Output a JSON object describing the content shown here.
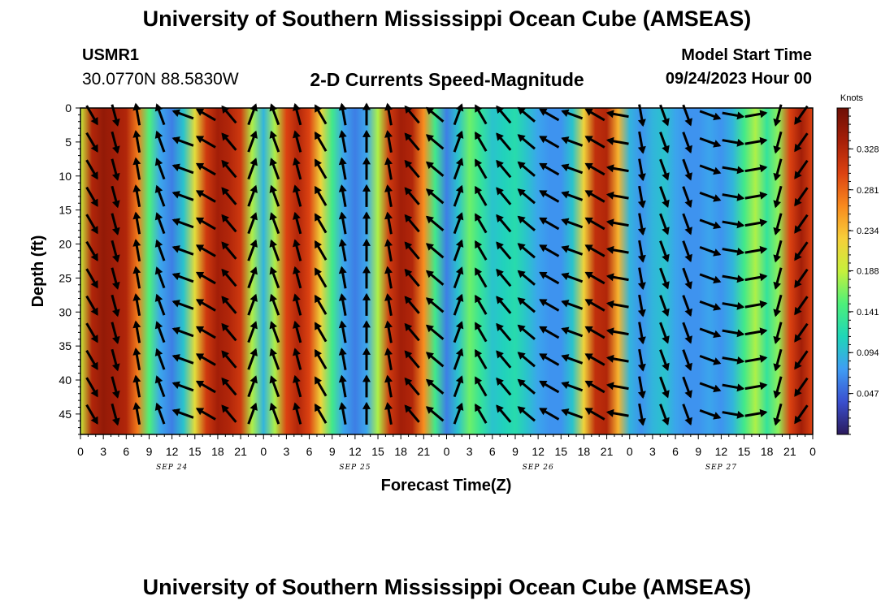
{
  "header": {
    "title": "University of Southern Mississippi Ocean Cube (AMSEAS)",
    "station": "USMR1",
    "coords": "30.0770N  88.5830W",
    "plot_title": "2-D Currents Speed-Magnitude",
    "model_start_label": "Model Start Time",
    "model_start_value": "09/24/2023 Hour 00"
  },
  "footer": {
    "title": "University of Southern Mississippi Ocean Cube (AMSEAS)"
  },
  "colors": {
    "scale": [
      "#2b1a5c",
      "#3a4fcf",
      "#3f9df4",
      "#1fd6b8",
      "#4df07a",
      "#c6f03c",
      "#f7cf3a",
      "#f98a1e",
      "#dc4211",
      "#a61f08",
      "#6e0f05"
    ]
  },
  "chart_data": {
    "type": "heatmap",
    "title": "2-D Currents Speed-Magnitude",
    "xlabel": "Forecast Time(Z)",
    "ylabel": "Depth (ft)",
    "x_range_hours": [
      0,
      96
    ],
    "y_range_ft": [
      0,
      48
    ],
    "x_tick_labels": [
      "0",
      "3",
      "6",
      "9",
      "12",
      "15",
      "18",
      "21",
      "0",
      "3",
      "6",
      "9",
      "12",
      "15",
      "18",
      "21",
      "0",
      "3",
      "6",
      "9",
      "12",
      "15",
      "18",
      "21",
      "0",
      "3",
      "6",
      "9",
      "12",
      "15",
      "18",
      "21",
      "0"
    ],
    "y_ticks": [
      0,
      5,
      10,
      15,
      20,
      25,
      30,
      35,
      40,
      45
    ],
    "day_labels": [
      "SEP 24",
      "SEP 25",
      "SEP 26",
      "SEP 27"
    ],
    "colorbar": {
      "label": "Knots",
      "range": [
        0.0,
        0.375
      ],
      "ticks": [
        "0.328",
        "0.281",
        "0.234",
        "0.188",
        "0.141",
        "0.094",
        "0.047"
      ]
    },
    "speed_columns_hours": [
      0,
      1.5,
      3,
      4.5,
      6,
      7.5,
      9,
      10.5,
      12,
      13.5,
      15,
      16.5,
      18,
      19.5,
      21,
      22.5,
      24,
      25.5,
      27,
      28.5,
      30,
      31.5,
      33,
      34.5,
      36,
      37.5,
      39,
      40.5,
      42,
      43.5,
      45,
      46.5,
      48,
      49.5,
      51,
      52.5,
      54,
      55.5,
      57,
      58.5,
      60,
      61.5,
      63,
      64.5,
      66,
      67.5,
      69,
      70.5,
      72,
      73.5,
      75,
      76.5,
      78,
      79.5,
      81,
      82.5,
      84,
      85.5,
      87,
      88.5,
      90,
      91.5,
      93,
      94.5,
      96
    ],
    "speed_knots_by_column": [
      0.19,
      0.33,
      0.35,
      0.34,
      0.33,
      0.27,
      0.15,
      0.08,
      0.06,
      0.1,
      0.21,
      0.31,
      0.34,
      0.33,
      0.31,
      0.18,
      0.09,
      0.18,
      0.3,
      0.33,
      0.3,
      0.22,
      0.14,
      0.08,
      0.06,
      0.08,
      0.18,
      0.31,
      0.34,
      0.33,
      0.26,
      0.14,
      0.06,
      0.1,
      0.16,
      0.13,
      0.1,
      0.11,
      0.12,
      0.1,
      0.08,
      0.07,
      0.07,
      0.1,
      0.22,
      0.32,
      0.33,
      0.24,
      0.09,
      0.07,
      0.09,
      0.1,
      0.08,
      0.07,
      0.07,
      0.08,
      0.07,
      0.09,
      0.14,
      0.18,
      0.13,
      0.17,
      0.3,
      0.34,
      0.3
    ],
    "arrow_times_hours": [
      1.5,
      4.5,
      7.5,
      10.5,
      13.5,
      16.5,
      19.5,
      22.5,
      25.5,
      28.5,
      31.5,
      34.5,
      37.5,
      40.5,
      43.5,
      46.5,
      49.5,
      52.5,
      55.5,
      58.5,
      61.5,
      64.5,
      67.5,
      70.5,
      73.5,
      76.5,
      79.5,
      82.5,
      85.5,
      88.5,
      91.5,
      94.5
    ],
    "arrow_depths_ft": [
      1,
      5,
      9,
      13,
      17,
      21,
      25,
      29,
      33,
      37,
      41,
      45
    ],
    "arrow_direction_deg_by_time": [
      150,
      165,
      350,
      340,
      290,
      300,
      320,
      20,
      340,
      345,
      330,
      350,
      0,
      350,
      320,
      310,
      20,
      330,
      320,
      310,
      300,
      290,
      300,
      280,
      170,
      160,
      160,
      110,
      100,
      80,
      195,
      215
    ]
  }
}
